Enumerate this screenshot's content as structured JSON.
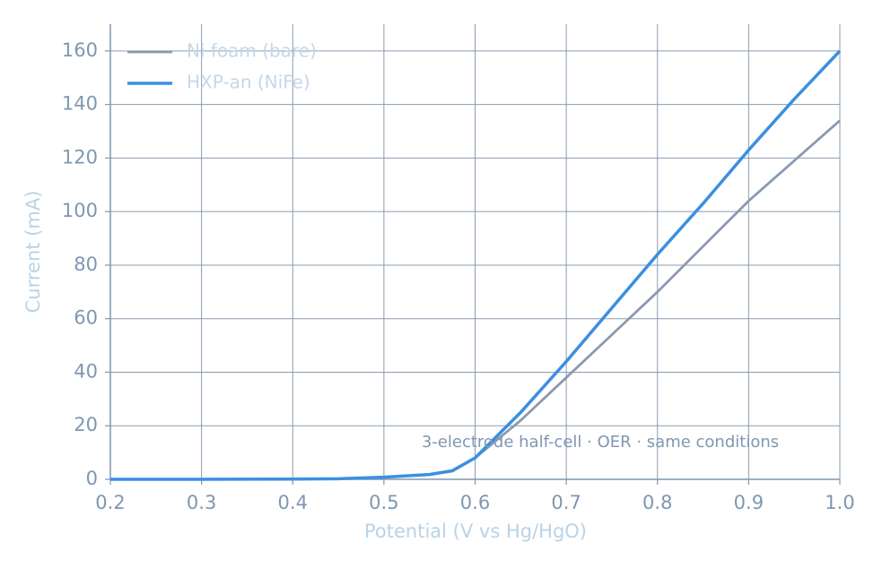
{
  "chart_data": {
    "type": "line",
    "xlabel": "Potential (V vs Hg/HgO)",
    "ylabel": "Current (mA)",
    "annotation": "3-electrode half-cell · OER · same conditions",
    "x": [
      0.2,
      0.3,
      0.4,
      0.45,
      0.5,
      0.55,
      0.575,
      0.6,
      0.65,
      0.7,
      0.75,
      0.8,
      0.85,
      0.9,
      0.95,
      1.0
    ],
    "series": [
      {
        "name": "Ni foam (bare)",
        "color": "#8a9bb0",
        "values": [
          0,
          0,
          0.1,
          0.2,
          0.8,
          1.8,
          3,
          8,
          22,
          38,
          54,
          70,
          87,
          104,
          119,
          134
        ]
      },
      {
        "name": "HXP-an (NiFe)",
        "color": "#3b8fe0",
        "values": [
          0,
          0,
          0.1,
          0.2,
          0.8,
          1.8,
          3.2,
          8,
          25,
          44,
          64,
          84,
          103,
          123,
          142,
          160
        ]
      }
    ],
    "xlim": [
      0.2,
      1.0
    ],
    "ylim": [
      0,
      170
    ],
    "xticks": [
      0.2,
      0.3,
      0.4,
      0.5,
      0.6,
      0.7,
      0.8,
      0.9,
      {
        "value": 1.0,
        "label": "1.0"
      }
    ],
    "yticks": [
      0,
      20,
      40,
      60,
      80,
      100,
      120,
      140,
      160
    ],
    "grid": true,
    "legend": "upper left"
  }
}
